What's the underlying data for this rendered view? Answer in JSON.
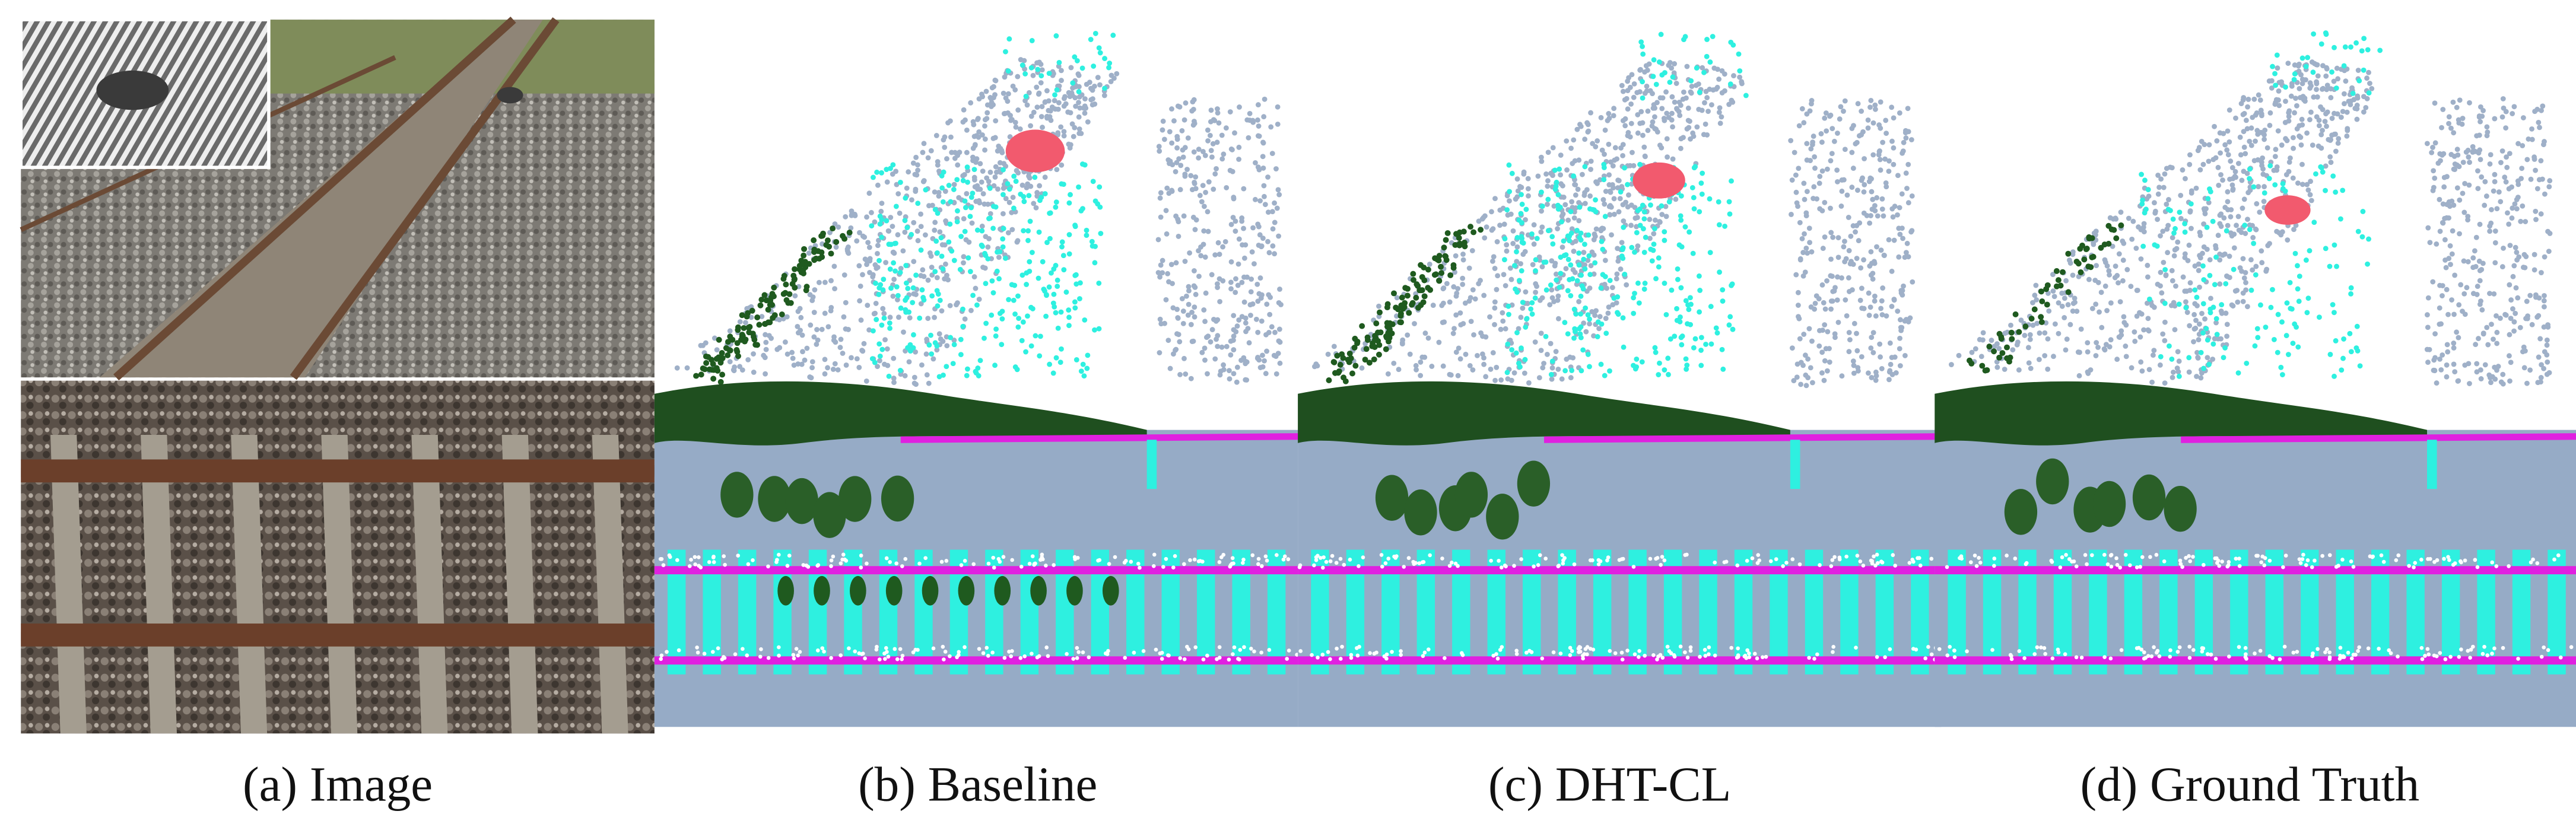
{
  "panels": [
    {
      "caption": "(a) Image"
    },
    {
      "caption": "(b) Baseline"
    },
    {
      "caption": "(c) DHT-CL"
    },
    {
      "caption": "(d) Ground Truth"
    }
  ]
}
